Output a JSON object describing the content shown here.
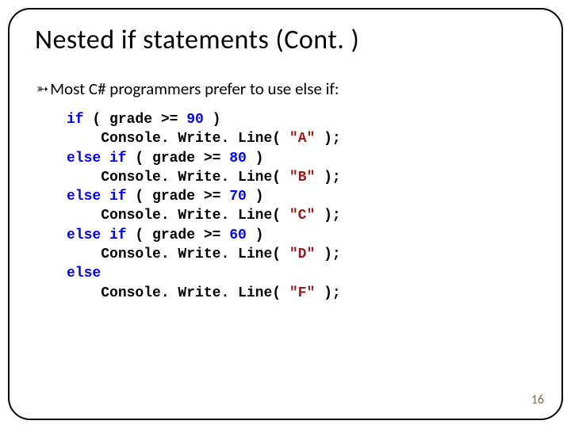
{
  "title": "Nested if statements (Cont. )",
  "bullet_glyph": "➳",
  "body_text": "Most C# programmers prefer to use else if:",
  "page_number": "16",
  "code": {
    "keyword_color": "#0000ff",
    "number_color": "#0000ff",
    "string_color": "#a31515",
    "text_color": "#000000",
    "font_family": "Courier New",
    "font_size_pt": 14,
    "lines": [
      {
        "indent": 0,
        "parts": [
          {
            "t": "if",
            "c": "kw"
          },
          {
            "t": " ( grade >= ",
            "c": "plain"
          },
          {
            "t": "90",
            "c": "num"
          },
          {
            "t": " )",
            "c": "plain"
          }
        ]
      },
      {
        "indent": 1,
        "parts": [
          {
            "t": "Console. Write. Line( ",
            "c": "plain"
          },
          {
            "t": "\"A\"",
            "c": "str"
          },
          {
            "t": " );",
            "c": "plain"
          }
        ]
      },
      {
        "indent": 0,
        "parts": [
          {
            "t": "else if",
            "c": "kw"
          },
          {
            "t": " ( grade >= ",
            "c": "plain"
          },
          {
            "t": "80",
            "c": "num"
          },
          {
            "t": " )",
            "c": "plain"
          }
        ]
      },
      {
        "indent": 1,
        "parts": [
          {
            "t": "Console. Write. Line( ",
            "c": "plain"
          },
          {
            "t": "\"B\"",
            "c": "str"
          },
          {
            "t": " );",
            "c": "plain"
          }
        ]
      },
      {
        "indent": 0,
        "parts": [
          {
            "t": "else if",
            "c": "kw"
          },
          {
            "t": " ( grade >= ",
            "c": "plain"
          },
          {
            "t": "70",
            "c": "num"
          },
          {
            "t": " )",
            "c": "plain"
          }
        ]
      },
      {
        "indent": 1,
        "parts": [
          {
            "t": "Console. Write. Line( ",
            "c": "plain"
          },
          {
            "t": "\"C\"",
            "c": "str"
          },
          {
            "t": " );",
            "c": "plain"
          }
        ]
      },
      {
        "indent": 0,
        "parts": [
          {
            "t": "else if",
            "c": "kw"
          },
          {
            "t": " ( grade >= ",
            "c": "plain"
          },
          {
            "t": "60",
            "c": "num"
          },
          {
            "t": " )",
            "c": "plain"
          }
        ]
      },
      {
        "indent": 1,
        "parts": [
          {
            "t": "Console. Write. Line( ",
            "c": "plain"
          },
          {
            "t": "\"D\"",
            "c": "str"
          },
          {
            "t": " );",
            "c": "plain"
          }
        ]
      },
      {
        "indent": 0,
        "parts": [
          {
            "t": "else",
            "c": "kw"
          }
        ]
      },
      {
        "indent": 1,
        "parts": [
          {
            "t": "Console. Write. Line( ",
            "c": "plain"
          },
          {
            "t": "\"F\"",
            "c": "str"
          },
          {
            "t": " );",
            "c": "plain"
          }
        ]
      }
    ]
  }
}
